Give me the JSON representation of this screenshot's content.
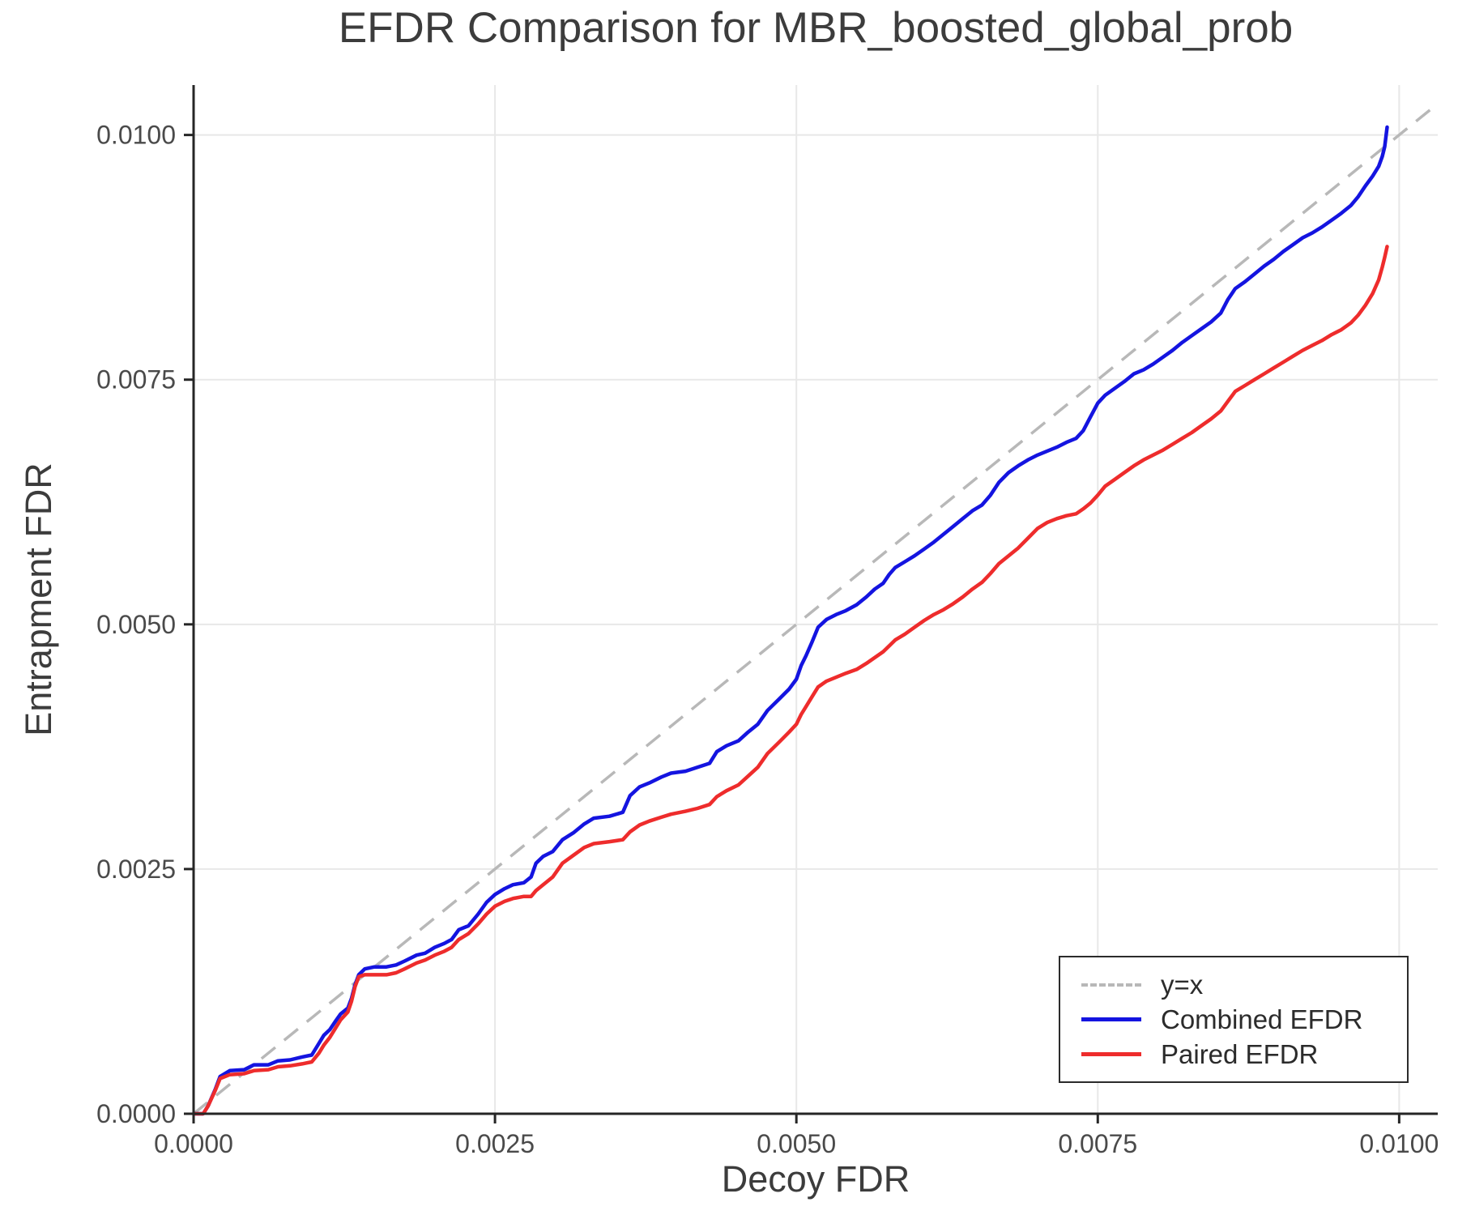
{
  "chart_data": {
    "type": "line",
    "title": "EFDR Comparison for MBR_boosted_global_prob",
    "xlabel": "Decoy FDR",
    "ylabel": "Entrapment FDR",
    "xlim": [
      0,
      0.01032
    ],
    "ylim": [
      0,
      0.01051
    ],
    "grid": true,
    "legend_position": "lower right",
    "colors": {
      "grid": "#e8e8e8",
      "spine": "#262626",
      "tick_label": "#4a4a4a",
      "title": "#3c3c3c"
    },
    "xticks": {
      "values": [
        0,
        0.0025,
        0.005,
        0.0075,
        0.01
      ],
      "labels": [
        "0.0000",
        "0.0025",
        "0.0050",
        "0.0075",
        "0.0100"
      ]
    },
    "yticks": {
      "values": [
        0,
        0.0025,
        0.005,
        0.0075,
        0.01
      ],
      "labels": [
        "0.0000",
        "0.0025",
        "0.0050",
        "0.0075",
        "0.0100"
      ]
    },
    "reference_line": {
      "label": "y=x",
      "style": "dashed",
      "color": "#b8b8b8",
      "from": [
        0,
        0
      ],
      "to": [
        0.01032,
        0.01032
      ]
    },
    "series": [
      {
        "name": "Combined EFDR",
        "color": "#1414e0",
        "points": [
          [
            0.0,
            0.0
          ],
          [
            8e-05,
            0.0
          ],
          [
            0.00012,
            8e-05
          ],
          [
            0.00018,
            0.00025
          ],
          [
            0.00022,
            0.00038
          ],
          [
            0.0003,
            0.00044
          ],
          [
            0.00042,
            0.00045
          ],
          [
            0.0005,
            0.0005
          ],
          [
            0.00062,
            0.0005
          ],
          [
            0.0007,
            0.00054
          ],
          [
            0.0008,
            0.00055
          ],
          [
            0.0009,
            0.00058
          ],
          [
            0.00098,
            0.0006
          ],
          [
            0.00104,
            0.00072
          ],
          [
            0.00108,
            0.0008
          ],
          [
            0.00113,
            0.00086
          ],
          [
            0.00118,
            0.00095
          ],
          [
            0.00122,
            0.00102
          ],
          [
            0.00128,
            0.00108
          ],
          [
            0.00131,
            0.00118
          ],
          [
            0.00134,
            0.00132
          ],
          [
            0.00137,
            0.00142
          ],
          [
            0.00142,
            0.00148
          ],
          [
            0.0015,
            0.0015
          ],
          [
            0.0016,
            0.0015
          ],
          [
            0.00168,
            0.00152
          ],
          [
            0.00175,
            0.00156
          ],
          [
            0.00185,
            0.00162
          ],
          [
            0.00192,
            0.00164
          ],
          [
            0.002,
            0.0017
          ],
          [
            0.00208,
            0.00174
          ],
          [
            0.00214,
            0.00178
          ],
          [
            0.0022,
            0.00188
          ],
          [
            0.00228,
            0.00192
          ],
          [
            0.00236,
            0.00204
          ],
          [
            0.00243,
            0.00216
          ],
          [
            0.0025,
            0.00224
          ],
          [
            0.00258,
            0.0023
          ],
          [
            0.00265,
            0.00234
          ],
          [
            0.00274,
            0.00236
          ],
          [
            0.0028,
            0.00242
          ],
          [
            0.00284,
            0.00256
          ],
          [
            0.0029,
            0.00263
          ],
          [
            0.00298,
            0.00268
          ],
          [
            0.00306,
            0.0028
          ],
          [
            0.00315,
            0.00287
          ],
          [
            0.00324,
            0.00296
          ],
          [
            0.00332,
            0.00302
          ],
          [
            0.00345,
            0.00304
          ],
          [
            0.00356,
            0.00308
          ],
          [
            0.00362,
            0.00325
          ],
          [
            0.0037,
            0.00334
          ],
          [
            0.00378,
            0.00338
          ],
          [
            0.00388,
            0.00344
          ],
          [
            0.00396,
            0.00348
          ],
          [
            0.00408,
            0.0035
          ],
          [
            0.00418,
            0.00354
          ],
          [
            0.00428,
            0.00358
          ],
          [
            0.00434,
            0.0037
          ],
          [
            0.00442,
            0.00376
          ],
          [
            0.00452,
            0.00381
          ],
          [
            0.0046,
            0.0039
          ],
          [
            0.00468,
            0.00398
          ],
          [
            0.00476,
            0.00412
          ],
          [
            0.00486,
            0.00424
          ],
          [
            0.00494,
            0.00434
          ],
          [
            0.005,
            0.00444
          ],
          [
            0.00504,
            0.00458
          ],
          [
            0.00508,
            0.00468
          ],
          [
            0.00513,
            0.00482
          ],
          [
            0.00518,
            0.00497
          ],
          [
            0.00525,
            0.00505
          ],
          [
            0.00533,
            0.0051
          ],
          [
            0.00541,
            0.00514
          ],
          [
            0.0055,
            0.0052
          ],
          [
            0.00558,
            0.00528
          ],
          [
            0.00565,
            0.00536
          ],
          [
            0.00572,
            0.00542
          ],
          [
            0.00577,
            0.00551
          ],
          [
            0.00582,
            0.00558
          ],
          [
            0.0059,
            0.00564
          ],
          [
            0.00598,
            0.0057
          ],
          [
            0.00606,
            0.00577
          ],
          [
            0.00614,
            0.00584
          ],
          [
            0.00622,
            0.00592
          ],
          [
            0.0063,
            0.006
          ],
          [
            0.00638,
            0.00608
          ],
          [
            0.00646,
            0.00616
          ],
          [
            0.00654,
            0.00622
          ],
          [
            0.00661,
            0.00632
          ],
          [
            0.00668,
            0.00645
          ],
          [
            0.00676,
            0.00655
          ],
          [
            0.00684,
            0.00662
          ],
          [
            0.00692,
            0.00668
          ],
          [
            0.007,
            0.00673
          ],
          [
            0.00708,
            0.00677
          ],
          [
            0.00716,
            0.00681
          ],
          [
            0.00724,
            0.00686
          ],
          [
            0.00732,
            0.0069
          ],
          [
            0.00738,
            0.00698
          ],
          [
            0.00744,
            0.00712
          ],
          [
            0.0075,
            0.00726
          ],
          [
            0.00756,
            0.00734
          ],
          [
            0.00764,
            0.00741
          ],
          [
            0.00772,
            0.00748
          ],
          [
            0.0078,
            0.00756
          ],
          [
            0.00788,
            0.0076
          ],
          [
            0.00796,
            0.00766
          ],
          [
            0.00804,
            0.00773
          ],
          [
            0.00812,
            0.0078
          ],
          [
            0.0082,
            0.00788
          ],
          [
            0.00828,
            0.00795
          ],
          [
            0.00836,
            0.00802
          ],
          [
            0.00844,
            0.00809
          ],
          [
            0.00852,
            0.00818
          ],
          [
            0.00858,
            0.00832
          ],
          [
            0.00864,
            0.00843
          ],
          [
            0.00872,
            0.0085
          ],
          [
            0.0088,
            0.00858
          ],
          [
            0.00888,
            0.00866
          ],
          [
            0.00896,
            0.00873
          ],
          [
            0.00904,
            0.00881
          ],
          [
            0.00912,
            0.00888
          ],
          [
            0.0092,
            0.00895
          ],
          [
            0.00928,
            0.009
          ],
          [
            0.00936,
            0.00906
          ],
          [
            0.00944,
            0.00913
          ],
          [
            0.00952,
            0.0092
          ],
          [
            0.0096,
            0.00928
          ],
          [
            0.00966,
            0.00937
          ],
          [
            0.00972,
            0.00948
          ],
          [
            0.00978,
            0.00958
          ],
          [
            0.00983,
            0.00968
          ],
          [
            0.00986,
            0.00978
          ],
          [
            0.00988,
            0.00988
          ],
          [
            0.0099,
            0.01008
          ]
        ]
      },
      {
        "name": "Paired EFDR",
        "color": "#ee2c2c",
        "points": [
          [
            0.0,
            0.0
          ],
          [
            8e-05,
            0.0
          ],
          [
            0.00012,
            8e-05
          ],
          [
            0.00018,
            0.00024
          ],
          [
            0.00022,
            0.00036
          ],
          [
            0.0003,
            0.0004
          ],
          [
            0.00042,
            0.00041
          ],
          [
            0.0005,
            0.00044
          ],
          [
            0.00062,
            0.00045
          ],
          [
            0.0007,
            0.00048
          ],
          [
            0.0008,
            0.00049
          ],
          [
            0.0009,
            0.00051
          ],
          [
            0.00098,
            0.00053
          ],
          [
            0.00104,
            0.00062
          ],
          [
            0.00108,
            0.0007
          ],
          [
            0.00113,
            0.00078
          ],
          [
            0.00118,
            0.00088
          ],
          [
            0.00122,
            0.00096
          ],
          [
            0.00128,
            0.00104
          ],
          [
            0.00131,
            0.00115
          ],
          [
            0.00134,
            0.0013
          ],
          [
            0.00137,
            0.0014
          ],
          [
            0.00142,
            0.00142
          ],
          [
            0.0015,
            0.00142
          ],
          [
            0.0016,
            0.00142
          ],
          [
            0.00168,
            0.00144
          ],
          [
            0.00175,
            0.00148
          ],
          [
            0.00185,
            0.00154
          ],
          [
            0.00192,
            0.00157
          ],
          [
            0.002,
            0.00162
          ],
          [
            0.00208,
            0.00166
          ],
          [
            0.00214,
            0.0017
          ],
          [
            0.0022,
            0.00178
          ],
          [
            0.00228,
            0.00184
          ],
          [
            0.00236,
            0.00194
          ],
          [
            0.00243,
            0.00204
          ],
          [
            0.0025,
            0.00212
          ],
          [
            0.00258,
            0.00217
          ],
          [
            0.00265,
            0.0022
          ],
          [
            0.00274,
            0.00222
          ],
          [
            0.0028,
            0.00222
          ],
          [
            0.00284,
            0.00228
          ],
          [
            0.0029,
            0.00234
          ],
          [
            0.00298,
            0.00242
          ],
          [
            0.00306,
            0.00256
          ],
          [
            0.00315,
            0.00264
          ],
          [
            0.00324,
            0.00272
          ],
          [
            0.00332,
            0.00276
          ],
          [
            0.00345,
            0.00278
          ],
          [
            0.00356,
            0.0028
          ],
          [
            0.00362,
            0.00288
          ],
          [
            0.0037,
            0.00295
          ],
          [
            0.00378,
            0.00299
          ],
          [
            0.00388,
            0.00303
          ],
          [
            0.00396,
            0.00306
          ],
          [
            0.00408,
            0.00309
          ],
          [
            0.00418,
            0.00312
          ],
          [
            0.00428,
            0.00316
          ],
          [
            0.00434,
            0.00324
          ],
          [
            0.00442,
            0.0033
          ],
          [
            0.00452,
            0.00336
          ],
          [
            0.0046,
            0.00345
          ],
          [
            0.00468,
            0.00354
          ],
          [
            0.00476,
            0.00368
          ],
          [
            0.00486,
            0.0038
          ],
          [
            0.00494,
            0.0039
          ],
          [
            0.005,
            0.00398
          ],
          [
            0.00504,
            0.00408
          ],
          [
            0.00508,
            0.00416
          ],
          [
            0.00513,
            0.00426
          ],
          [
            0.00518,
            0.00436
          ],
          [
            0.00525,
            0.00442
          ],
          [
            0.00533,
            0.00446
          ],
          [
            0.00541,
            0.0045
          ],
          [
            0.0055,
            0.00454
          ],
          [
            0.00558,
            0.0046
          ],
          [
            0.00565,
            0.00466
          ],
          [
            0.00572,
            0.00472
          ],
          [
            0.00577,
            0.00478
          ],
          [
            0.00582,
            0.00484
          ],
          [
            0.0059,
            0.0049
          ],
          [
            0.00598,
            0.00497
          ],
          [
            0.00606,
            0.00504
          ],
          [
            0.00614,
            0.0051
          ],
          [
            0.00622,
            0.00515
          ],
          [
            0.0063,
            0.00521
          ],
          [
            0.00638,
            0.00528
          ],
          [
            0.00646,
            0.00536
          ],
          [
            0.00654,
            0.00543
          ],
          [
            0.00661,
            0.00552
          ],
          [
            0.00668,
            0.00562
          ],
          [
            0.00676,
            0.0057
          ],
          [
            0.00684,
            0.00578
          ],
          [
            0.00692,
            0.00588
          ],
          [
            0.007,
            0.00598
          ],
          [
            0.00708,
            0.00604
          ],
          [
            0.00716,
            0.00608
          ],
          [
            0.00724,
            0.00611
          ],
          [
            0.00732,
            0.00613
          ],
          [
            0.00738,
            0.00618
          ],
          [
            0.00744,
            0.00624
          ],
          [
            0.0075,
            0.00632
          ],
          [
            0.00756,
            0.00641
          ],
          [
            0.00764,
            0.00648
          ],
          [
            0.00772,
            0.00655
          ],
          [
            0.0078,
            0.00662
          ],
          [
            0.00788,
            0.00668
          ],
          [
            0.00796,
            0.00673
          ],
          [
            0.00804,
            0.00678
          ],
          [
            0.00812,
            0.00684
          ],
          [
            0.0082,
            0.0069
          ],
          [
            0.00828,
            0.00696
          ],
          [
            0.00836,
            0.00703
          ],
          [
            0.00844,
            0.0071
          ],
          [
            0.00852,
            0.00718
          ],
          [
            0.00858,
            0.00728
          ],
          [
            0.00864,
            0.00738
          ],
          [
            0.00872,
            0.00744
          ],
          [
            0.0088,
            0.0075
          ],
          [
            0.00888,
            0.00756
          ],
          [
            0.00896,
            0.00762
          ],
          [
            0.00904,
            0.00768
          ],
          [
            0.00912,
            0.00774
          ],
          [
            0.0092,
            0.0078
          ],
          [
            0.00928,
            0.00785
          ],
          [
            0.00936,
            0.0079
          ],
          [
            0.00944,
            0.00796
          ],
          [
            0.00952,
            0.00801
          ],
          [
            0.0096,
            0.00808
          ],
          [
            0.00966,
            0.00816
          ],
          [
            0.00972,
            0.00826
          ],
          [
            0.00978,
            0.00838
          ],
          [
            0.00983,
            0.00852
          ],
          [
            0.00986,
            0.00865
          ],
          [
            0.00988,
            0.00875
          ],
          [
            0.0099,
            0.00886
          ]
        ]
      }
    ]
  }
}
